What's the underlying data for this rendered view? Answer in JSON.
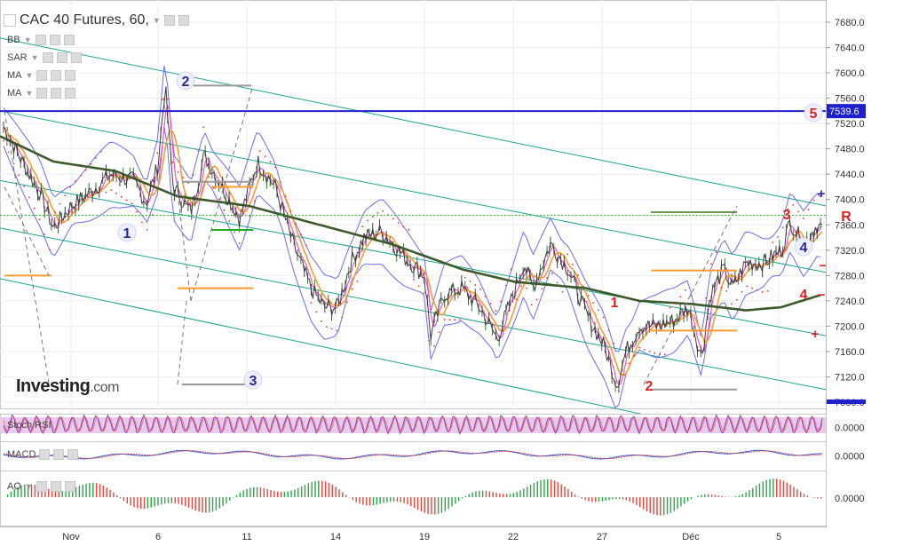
{
  "header": {
    "symbol": "CAC 40 Futures, 60,"
  },
  "indicators": [
    "BB",
    "SAR",
    "MA",
    "MA"
  ],
  "pane_labels": {
    "stoch": "Stoch RSI",
    "macd": "MACD",
    "ao": "AO"
  },
  "logo": {
    "main": "Investing",
    "suffix": ".com"
  },
  "colors": {
    "price": "#3c3c3c",
    "bb": "#6b6bff",
    "sar": "#ff2a2a",
    "ma_fast": "#ff9a2e",
    "ma_slow": "#3d5a2a",
    "channel": "#1aa58c",
    "resistance": "#1f1fcc",
    "wave_red": "#e02020",
    "wave_blue": "#2a2a9a",
    "pink": "#ff40c0"
  },
  "chart_data": {
    "type": "line",
    "y_ticks": [
      "7680.0",
      "7640.0",
      "7600.0",
      "7560.0",
      "7520.0",
      "7480.0",
      "7440.0",
      "7400.0",
      "7360.0",
      "7320.0",
      "7280.0",
      "7240.0",
      "7200.0",
      "7160.0",
      "7120.0",
      "7080.0"
    ],
    "ylim": [
      7065,
      7700
    ],
    "x_ticks": [
      "Nov",
      "6",
      "11",
      "14",
      "19",
      "22",
      "27",
      "Déc",
      "5"
    ],
    "resistance": {
      "value": 7539.6,
      "label": "7539.6"
    },
    "price_markers": [
      "7400.0",
      "7360.0",
      "7320.0",
      "7080.0"
    ],
    "wave_labels_red": [
      "5",
      "3",
      "R",
      "1",
      "2",
      "4",
      "+",
      "−",
      "+",
      "−"
    ],
    "wave_labels_blue": [
      "2",
      "1",
      "3",
      "4"
    ],
    "panes": [
      {
        "name": "Stoch RSI",
        "value_label": "0.0000"
      },
      {
        "name": "MACD",
        "value_label": "0.0000"
      },
      {
        "name": "AO",
        "value_label": "0.0000"
      }
    ]
  }
}
